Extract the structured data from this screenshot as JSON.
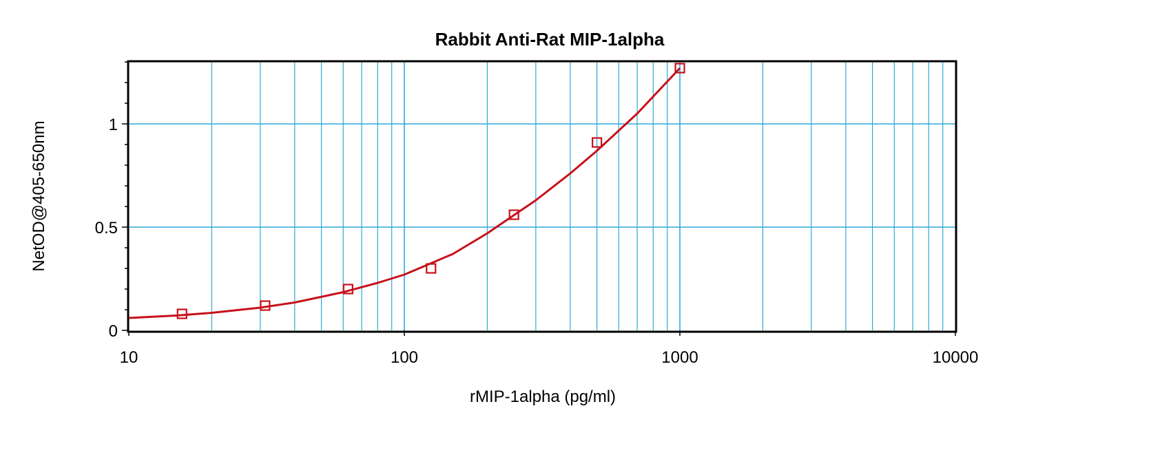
{
  "chart_data": {
    "type": "scatter",
    "title": "Rabbit Anti-Rat MIP-1alpha",
    "xlabel": "rMIP-1alpha (pg/ml)",
    "ylabel": "NetOD@405-650nm",
    "x_scale": "log",
    "xlim": [
      10,
      10000
    ],
    "ylim": [
      0,
      1.3
    ],
    "x_ticks": [
      10,
      100,
      1000,
      10000
    ],
    "x_tick_labels": [
      "10",
      "100",
      "1000",
      "10000"
    ],
    "y_ticks": [
      0,
      0.5,
      1
    ],
    "y_tick_labels": [
      "0",
      "0.5",
      "1"
    ],
    "grid": true,
    "colors": {
      "grid": "#2ea8d8",
      "series": "#c8101a",
      "frame": "#000000"
    },
    "series": [
      {
        "marker": "square",
        "x": [
          15.6,
          31.25,
          62.5,
          125,
          250,
          500,
          1000
        ],
        "y": [
          0.08,
          0.12,
          0.2,
          0.3,
          0.56,
          0.91,
          1.27
        ]
      }
    ],
    "fit_curve": {
      "x": [
        10,
        15,
        20,
        30,
        40,
        60,
        80,
        100,
        150,
        200,
        300,
        400,
        500,
        700,
        1000
      ],
      "y": [
        0.06,
        0.072,
        0.085,
        0.11,
        0.135,
        0.185,
        0.23,
        0.27,
        0.37,
        0.47,
        0.63,
        0.76,
        0.87,
        1.05,
        1.27
      ]
    }
  }
}
